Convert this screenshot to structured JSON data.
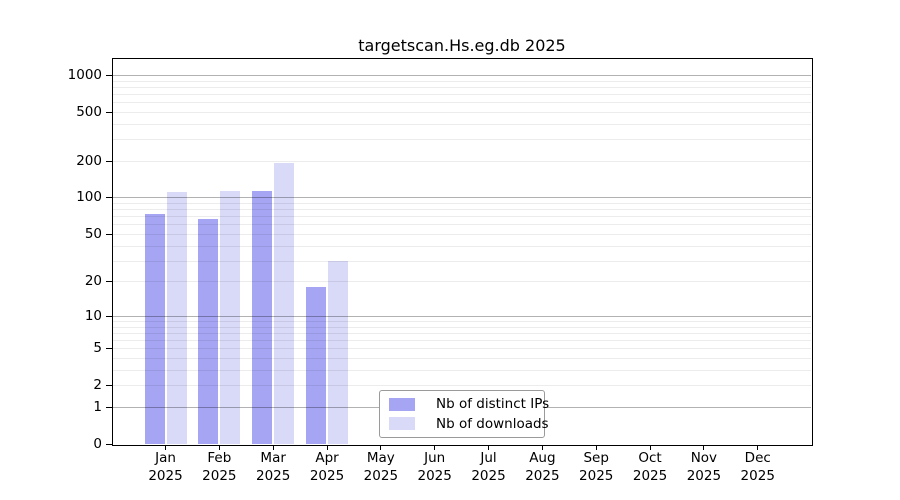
{
  "title": "targetscan.Hs.eg.db 2025",
  "chart_data": {
    "type": "bar",
    "title": "targetscan.Hs.eg.db 2025",
    "x_month_labels": [
      "Jan",
      "Feb",
      "Mar",
      "Apr",
      "May",
      "Jun",
      "Jul",
      "Aug",
      "Sep",
      "Oct",
      "Nov",
      "Dec"
    ],
    "x_year_label": "2025",
    "x_categories": [
      "Jan 2025",
      "Feb 2025",
      "Mar 2025",
      "Apr 2025",
      "May 2025",
      "Jun 2025",
      "Jul 2025",
      "Aug 2025",
      "Sep 2025",
      "Oct 2025",
      "Nov 2025",
      "Dec 2025"
    ],
    "y_scale": "log1p",
    "y_ticks": [
      1000,
      500,
      200,
      100,
      50,
      20,
      10,
      5,
      2,
      1,
      0
    ],
    "y_minor_gridlines": [
      2,
      3,
      4,
      5,
      6,
      7,
      8,
      9,
      20,
      30,
      40,
      50,
      60,
      70,
      80,
      90,
      200,
      300,
      400,
      500,
      600,
      700,
      800,
      900
    ],
    "y_major_gridlines": [
      1,
      10,
      100,
      1000
    ],
    "ylim": [
      0,
      1000
    ],
    "grid": true,
    "legend_position": "bottom-center",
    "series": [
      {
        "name": "Nb of distinct IPs",
        "color": "#a5a5f3",
        "values": [
          73,
          66,
          114,
          18,
          0,
          0,
          0,
          0,
          0,
          0,
          0,
          0
        ]
      },
      {
        "name": "Nb of downloads",
        "color": "#d9d9f8",
        "values": [
          110,
          112,
          190,
          30,
          0,
          0,
          0,
          0,
          0,
          0,
          0,
          0
        ]
      }
    ]
  },
  "colors": {
    "background": "#ffffff",
    "axis": "#000000",
    "grid_major": "rgba(0,0,0,0.30)",
    "grid_minor": "rgba(0,0,0,0.075)",
    "legend_border": "#9a9a9a",
    "bar_distinct_ips": "#a5a5f3",
    "bar_downloads": "#d9d9f8"
  }
}
